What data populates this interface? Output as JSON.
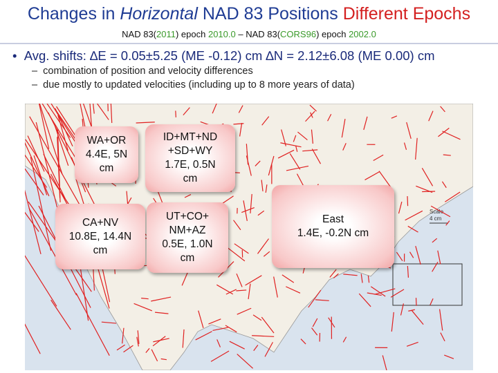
{
  "header": {
    "title": [
      "Changes in ",
      "Horizontal",
      " NAD 83 Positions ",
      "Different Epochs"
    ],
    "subtitle": [
      "NAD 83(",
      "2011",
      ") epoch ",
      "2010.0",
      " – NAD 83(",
      "CORS96",
      ") epoch ",
      "2002.0"
    ]
  },
  "bullet": {
    "text": "Avg. shifts: ∆E = 0.05±5.25 (ME -0.12) cm ∆N = 2.12±6.08 (ME 0.00) cm",
    "sub": [
      "combination of position and velocity differences",
      "due mostly to updated velocities (including up to 8 more years of data)"
    ]
  },
  "map": {
    "boxes": [
      {
        "lines": [
          "WA+OR",
          "4.4E, 5N",
          "cm"
        ]
      },
      {
        "lines": [
          "ID+MT+ND",
          "+SD+WY",
          "1.7E, 0.5N",
          "cm"
        ]
      },
      {
        "lines": [
          "CA+NV",
          "10.8E, 14.4N",
          "cm"
        ]
      },
      {
        "lines": [
          "UT+CO+",
          "NM+AZ",
          "0.5E, 1.0N",
          "cm"
        ]
      },
      {
        "lines": [
          "East",
          "1.4E, -0.2N cm"
        ]
      }
    ],
    "scale": [
      "Scale",
      "4 cm"
    ]
  }
}
